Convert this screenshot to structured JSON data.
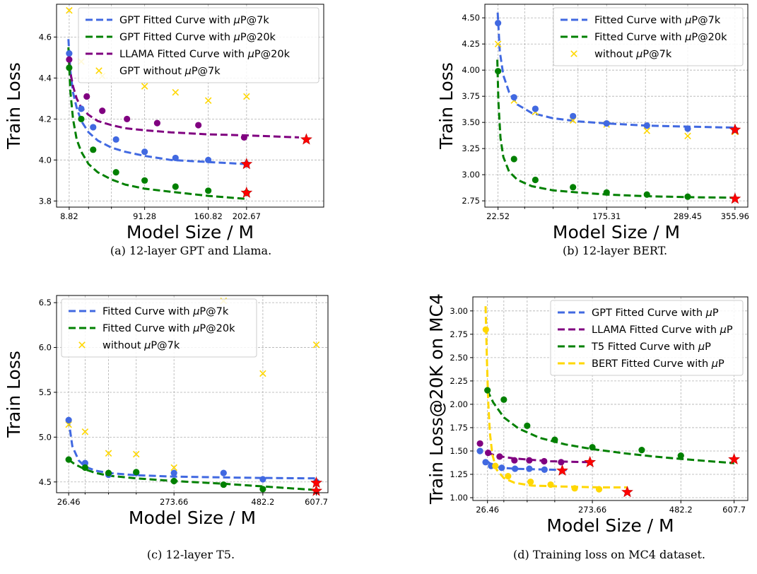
{
  "chart_data": [
    {
      "type": "scatter",
      "caption": "(a) 12-layer GPT and Llama.",
      "xlabel": "Model Size / M",
      "ylabel": "Train Loss",
      "xlim": [
        -5,
        287
      ],
      "ylim": [
        3.77,
        4.76
      ],
      "xticks": [
        8.82,
        91.28,
        160.82,
        202.67
      ],
      "xtick_labels": [
        "8.82",
        "91.28",
        "160.82",
        "202.67"
      ],
      "minor_xticks": [
        30,
        55
      ],
      "yticks": [
        3.8,
        4.0,
        4.2,
        4.4,
        4.6
      ],
      "ytick_labels": [
        "3.8",
        "4.0",
        "4.2",
        "4.4",
        "4.6"
      ],
      "grid": true,
      "legend_position": "top-right",
      "series": [
        {
          "name": "GPT Fitted Curve with μP@7k",
          "kind": "curve",
          "color": "#4169E1",
          "x": [
            8.0,
            10,
            13,
            17,
            22,
            30,
            40,
            55,
            70,
            91.28,
            120,
            160.82,
            202.67
          ],
          "y": [
            4.59,
            4.44,
            4.33,
            4.255,
            4.19,
            4.135,
            4.095,
            4.06,
            4.04,
            4.02,
            4.0,
            3.99,
            3.98
          ]
        },
        {
          "name": "GPT Fitted Curve with μP@20k",
          "kind": "curve",
          "color": "#008000",
          "x": [
            8.0,
            10,
            13,
            17,
            22,
            30,
            40,
            55,
            70,
            91.28,
            120,
            160.82,
            202.67
          ],
          "y": [
            4.55,
            4.34,
            4.2,
            4.1,
            4.04,
            3.98,
            3.94,
            3.905,
            3.88,
            3.86,
            3.845,
            3.825,
            3.81
          ]
        },
        {
          "name": "LLAMA Fitted Curve with μP@20k",
          "kind": "curve",
          "color": "#800080",
          "x": [
            8.0,
            10,
            13,
            17,
            22,
            30,
            40,
            55,
            70,
            91.28,
            120,
            160.82,
            202.67,
            260
          ],
          "y": [
            4.52,
            4.43,
            4.36,
            4.3,
            4.255,
            4.22,
            4.19,
            4.17,
            4.155,
            4.145,
            4.135,
            4.125,
            4.12,
            4.11
          ]
        },
        {
          "name": "GPT without μP@7k",
          "kind": "x",
          "color": "#FFD700",
          "x": [
            8.82,
            22,
            45,
            91.28,
            125,
            160.82,
            202.67
          ],
          "y": [
            4.73,
            4.48,
            4.41,
            4.36,
            4.33,
            4.29,
            4.31
          ]
        },
        {
          "kind": "dots",
          "color": "#4169E1",
          "x": [
            8.82,
            22,
            35,
            60,
            91.28,
            125,
            160.82,
            202.67
          ],
          "y": [
            4.52,
            4.25,
            4.16,
            4.1,
            4.04,
            4.01,
            4.0,
            3.98
          ]
        },
        {
          "kind": "dots",
          "color": "#008000",
          "x": [
            8.82,
            22,
            35,
            60,
            91.28,
            125,
            160.82,
            202.67
          ],
          "y": [
            4.45,
            4.2,
            4.05,
            3.94,
            3.9,
            3.87,
            3.85,
            3.84
          ]
        },
        {
          "kind": "dots",
          "color": "#800080",
          "x": [
            8.82,
            28,
            45,
            72,
            105,
            150,
            200
          ],
          "y": [
            4.49,
            4.31,
            4.24,
            4.2,
            4.18,
            4.17,
            4.11
          ]
        },
        {
          "kind": "stars",
          "color": "#FF0000",
          "x": [
            202.67,
            202.67,
            268
          ],
          "y": [
            3.98,
            3.84,
            4.1
          ]
        }
      ]
    },
    {
      "type": "scatter",
      "caption": "(b) 12-layer BERT.",
      "xlabel": "Model Size / M",
      "ylabel": "Train Loss",
      "xlim": [
        4,
        374
      ],
      "ylim": [
        2.69,
        4.63
      ],
      "xticks": [
        22.52,
        175.31,
        289.45,
        355.96
      ],
      "xtick_labels": [
        "22.52",
        "175.31",
        "289.45",
        "355.96"
      ],
      "minor_xticks": [
        60,
        100,
        135,
        230
      ],
      "yticks": [
        2.75,
        3.0,
        3.25,
        3.5,
        3.75,
        4.0,
        4.25,
        4.5
      ],
      "ytick_labels": [
        "2.75",
        "3.00",
        "3.25",
        "3.50",
        "3.75",
        "4.00",
        "4.25",
        "4.50"
      ],
      "grid": true,
      "legend_position": "top-right",
      "series": [
        {
          "name": "Fitted Curve with μP@7k",
          "kind": "curve",
          "color": "#4169E1",
          "x": [
            22.0,
            25,
            30,
            38,
            50,
            70,
            100,
            135,
            175.31,
            230,
            289.45,
            355.96
          ],
          "y": [
            4.55,
            4.18,
            3.95,
            3.79,
            3.67,
            3.59,
            3.54,
            3.51,
            3.49,
            3.47,
            3.46,
            3.45
          ]
        },
        {
          "name": "Fitted Curve with μP@20k",
          "kind": "curve",
          "color": "#008000",
          "x": [
            21.5,
            23,
            26,
            30,
            38,
            50,
            70,
            100,
            135,
            175.31,
            230,
            289.45,
            355.96
          ],
          "y": [
            4.1,
            3.7,
            3.35,
            3.17,
            3.03,
            2.95,
            2.89,
            2.85,
            2.83,
            2.81,
            2.795,
            2.785,
            2.78
          ]
        },
        {
          "name": "without μP@7k",
          "kind": "x",
          "color": "#FFD700",
          "x": [
            22.52,
            45,
            75,
            128,
            175.31,
            232,
            289.45,
            355.96
          ],
          "y": [
            4.25,
            3.71,
            3.6,
            3.52,
            3.48,
            3.42,
            3.37,
            3.41
          ]
        },
        {
          "kind": "dots",
          "color": "#4169E1",
          "x": [
            22.52,
            45,
            75,
            128,
            175.31,
            232,
            289.45,
            355.96
          ],
          "y": [
            4.45,
            3.74,
            3.63,
            3.56,
            3.49,
            3.47,
            3.44,
            3.43
          ]
        },
        {
          "kind": "dots",
          "color": "#008000",
          "x": [
            22.52,
            45,
            75,
            128,
            175.31,
            232,
            289.45
          ],
          "y": [
            3.99,
            3.15,
            2.95,
            2.88,
            2.83,
            2.81,
            2.79
          ]
        },
        {
          "kind": "stars",
          "color": "#FF0000",
          "x": [
            355.96,
            355.96
          ],
          "y": [
            3.43,
            2.77
          ]
        }
      ]
    },
    {
      "type": "scatter",
      "caption": "(c) 12-layer T5.",
      "xlabel": "Model Size / M",
      "ylabel": "Train Loss",
      "xlim": [
        -2,
        635
      ],
      "ylim": [
        4.38,
        6.58
      ],
      "xticks": [
        26.46,
        273.66,
        482.2,
        607.7
      ],
      "xtick_labels": [
        "26.46",
        "273.66",
        "482.2",
        "607.7"
      ],
      "minor_xticks": [
        65,
        120,
        185
      ],
      "yticks": [
        4.5,
        5.0,
        5.5,
        6.0,
        6.5
      ],
      "ytick_labels": [
        "4.5",
        "5.0",
        "5.5",
        "6.0",
        "6.5"
      ],
      "grid": true,
      "legend_position": "top-left",
      "series": [
        {
          "name": "Fitted Curve with μP@7k",
          "kind": "curve",
          "color": "#4169E1",
          "x": [
            26.0,
            35,
            50,
            65,
            90,
            120,
            185,
            273.66,
            390,
            482.2,
            607.7
          ],
          "y": [
            5.2,
            4.9,
            4.74,
            4.67,
            4.625,
            4.6,
            4.575,
            4.56,
            4.55,
            4.545,
            4.54
          ]
        },
        {
          "name": "Fitted Curve with μP@20k",
          "kind": "curve",
          "color": "#008000",
          "x": [
            26.0,
            40,
            65,
            90,
            120,
            185,
            273.66,
            390,
            482.2,
            607.7
          ],
          "y": [
            4.75,
            4.7,
            4.64,
            4.6,
            4.57,
            4.54,
            4.51,
            4.48,
            4.45,
            4.41
          ]
        },
        {
          "name": "without μP@7k",
          "kind": "x",
          "color": "#FFD700",
          "x": [
            26.46,
            65,
            120,
            185,
            273.66,
            390,
            482.2,
            607.7
          ],
          "y": [
            5.14,
            5.06,
            4.82,
            4.81,
            4.66,
            6.52,
            5.71,
            6.03
          ]
        },
        {
          "kind": "dots",
          "color": "#4169E1",
          "x": [
            26.46,
            65,
            120,
            185,
            273.66,
            390,
            482.2,
            607.7
          ],
          "y": [
            5.19,
            4.71,
            4.58,
            4.6,
            4.6,
            4.6,
            4.53,
            4.5
          ]
        },
        {
          "kind": "dots",
          "color": "#008000",
          "x": [
            26.46,
            65,
            120,
            185,
            273.66,
            390,
            482.2
          ],
          "y": [
            4.75,
            4.66,
            4.6,
            4.61,
            4.51,
            4.47,
            4.42
          ]
        },
        {
          "kind": "stars",
          "color": "#FF0000",
          "x": [
            607.7,
            607.7
          ],
          "y": [
            4.49,
            4.4
          ]
        }
      ]
    },
    {
      "type": "scatter",
      "caption": "(d) Training loss on MC4 dataset.",
      "xlabel": "Model Size / M",
      "ylabel": "Train Loss@20K on MC4",
      "xlim": [
        -8,
        640
      ],
      "ylim": [
        0.97,
        3.15
      ],
      "xticks": [
        26.46,
        273.66,
        482.2,
        607.7
      ],
      "xtick_labels": [
        "26.46",
        "273.66",
        "482.2",
        "607.7"
      ],
      "minor_xticks": [
        65,
        120,
        185
      ],
      "yticks": [
        1.0,
        1.25,
        1.5,
        1.75,
        2.0,
        2.25,
        2.5,
        2.75,
        3.0
      ],
      "ytick_labels": [
        "1.00",
        "1.25",
        "1.50",
        "1.75",
        "2.00",
        "2.25",
        "2.50",
        "2.75",
        "3.00"
      ],
      "grid": true,
      "legend_position": "top-right",
      "series": [
        {
          "name": "GPT Fitted Curve with μP",
          "kind": "curve",
          "color": "#4169E1",
          "x": [
            26.0,
            40,
            60,
            90,
            130,
            175,
            220
          ],
          "y": [
            1.39,
            1.34,
            1.32,
            1.31,
            1.305,
            1.3,
            1.295
          ]
        },
        {
          "name": "LLAMA Fitted Curve with μP",
          "kind": "curve",
          "color": "#800080",
          "x": [
            26.0,
            40,
            60,
            90,
            130,
            175,
            220,
            268
          ],
          "y": [
            1.48,
            1.46,
            1.44,
            1.42,
            1.405,
            1.39,
            1.385,
            1.38
          ]
        },
        {
          "name": "T5 Fitted Curve with μP",
          "kind": "curve",
          "color": "#008000",
          "x": [
            26.0,
            40,
            65,
            100,
            150,
            210,
            273.66,
            350,
            420,
            482.2,
            550,
            607.7
          ],
          "y": [
            2.15,
            2.02,
            1.86,
            1.74,
            1.64,
            1.57,
            1.52,
            1.475,
            1.44,
            1.415,
            1.39,
            1.37
          ]
        },
        {
          "name": "BERT Fitted Curve with μP",
          "kind": "curve",
          "color": "#FFD700",
          "x": [
            22.0,
            25,
            28,
            32,
            38,
            48,
            65,
            90,
            130,
            200,
            290,
            355.96
          ],
          "y": [
            3.05,
            2.5,
            2.05,
            1.7,
            1.46,
            1.3,
            1.21,
            1.16,
            1.13,
            1.12,
            1.11,
            1.11
          ]
        },
        {
          "kind": "dots",
          "color": "#4169E1",
          "x": [
            8.82,
            22,
            35,
            60,
            91.28,
            125,
            160.82
          ],
          "y": [
            1.5,
            1.38,
            1.34,
            1.32,
            1.31,
            1.31,
            1.3
          ]
        },
        {
          "kind": "dots",
          "color": "#800080",
          "x": [
            8.82,
            28,
            55,
            90,
            125,
            160,
            200
          ],
          "y": [
            1.58,
            1.48,
            1.44,
            1.4,
            1.4,
            1.39,
            1.38
          ]
        },
        {
          "kind": "dots",
          "color": "#008000",
          "x": [
            26.46,
            65,
            120,
            185,
            273.66,
            390,
            482.2
          ],
          "y": [
            2.15,
            2.05,
            1.77,
            1.62,
            1.54,
            1.51,
            1.45
          ]
        },
        {
          "kind": "dots",
          "color": "#FFD700",
          "x": [
            22.52,
            45,
            75,
            128,
            175.31,
            232,
            289.45
          ],
          "y": [
            2.8,
            1.34,
            1.23,
            1.17,
            1.14,
            1.1,
            1.09
          ]
        },
        {
          "kind": "stars",
          "color": "#FF0000",
          "x": [
            202.67,
            268,
            355.96,
            607.7
          ],
          "y": [
            1.29,
            1.38,
            1.06,
            1.41
          ]
        }
      ]
    }
  ]
}
